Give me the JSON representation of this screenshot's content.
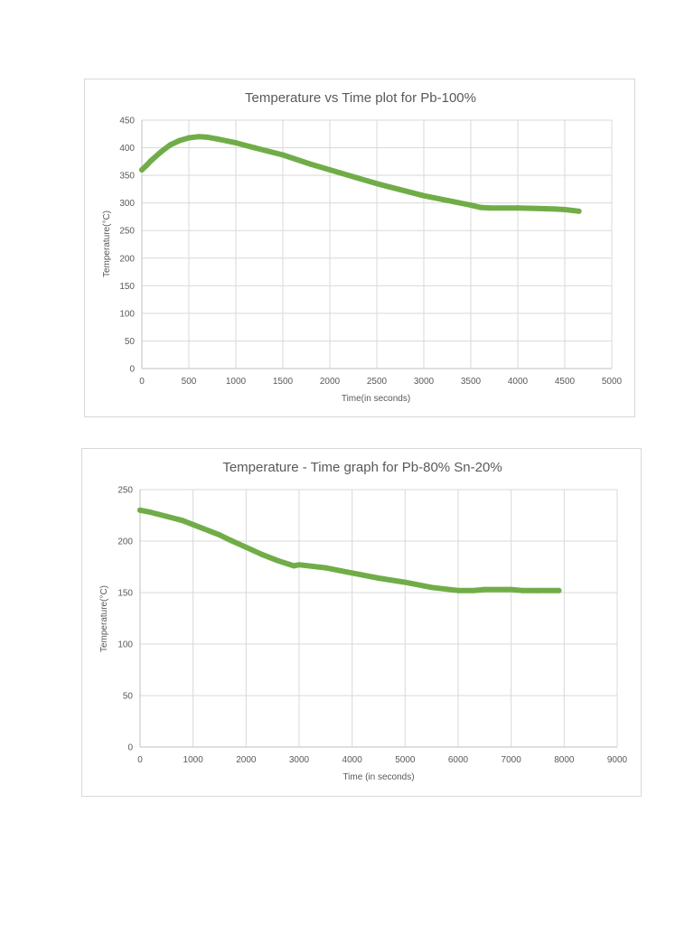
{
  "colors": {
    "series": "#70ad47",
    "grid": "#d9d9d9",
    "text": "#595959"
  },
  "chart_data": [
    {
      "type": "line",
      "title": "Temperature vs Time plot for Pb-100%",
      "xlabel": "Time(in seconds)",
      "ylabel": "Temperature(°C)",
      "xlim": [
        0,
        5000
      ],
      "ylim": [
        0,
        450
      ],
      "xticks": [
        0,
        500,
        1000,
        1500,
        2000,
        2500,
        3000,
        3500,
        4000,
        4500,
        5000
      ],
      "yticks": [
        0,
        50,
        100,
        150,
        200,
        250,
        300,
        350,
        400,
        450
      ],
      "grid": true,
      "legend": "none",
      "series": [
        {
          "x": [
            0,
            50,
            100,
            200,
            300,
            400,
            500,
            600,
            700,
            800,
            1000,
            1200,
            1500,
            1800,
            2000,
            2500,
            3000,
            3500,
            3600,
            3700,
            4000,
            4200,
            4400,
            4500,
            4650
          ],
          "y": [
            360,
            368,
            377,
            392,
            405,
            413,
            418,
            420,
            419,
            416,
            409,
            400,
            387,
            370,
            360,
            335,
            313,
            296,
            292,
            291,
            291,
            290,
            289,
            288,
            285
          ]
        }
      ]
    },
    {
      "type": "line",
      "title": "Temperature - Time graph for Pb-80% Sn-20%",
      "xlabel": "Time (in seconds)",
      "ylabel": "Temperature(°C)",
      "xlim": [
        0,
        9000
      ],
      "ylim": [
        0,
        250
      ],
      "xticks": [
        0,
        1000,
        2000,
        3000,
        4000,
        5000,
        6000,
        7000,
        8000,
        9000
      ],
      "yticks": [
        0,
        50,
        100,
        150,
        200,
        250
      ],
      "grid": true,
      "legend": "none",
      "series": [
        {
          "x": [
            0,
            200,
            500,
            800,
            1000,
            1200,
            1500,
            1700,
            2000,
            2300,
            2600,
            2900,
            3000,
            3500,
            3800,
            4000,
            4500,
            5000,
            5500,
            6000,
            6300,
            6500,
            7000,
            7200,
            7500,
            7900
          ],
          "y": [
            230,
            228,
            224,
            220,
            216,
            212,
            206,
            201,
            194,
            187,
            181,
            176,
            177,
            174,
            171,
            169,
            164,
            160,
            155,
            152,
            152,
            153,
            153,
            152,
            152,
            152
          ]
        }
      ]
    }
  ]
}
